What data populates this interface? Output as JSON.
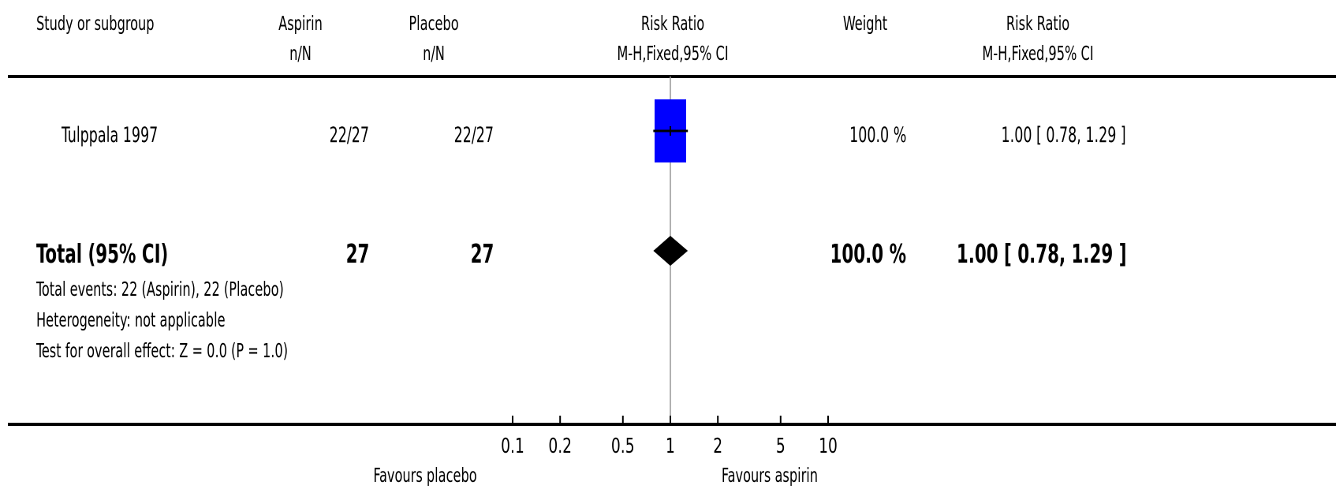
{
  "header": {
    "study": "Study or subgroup",
    "group1_name": "Aspirin",
    "group1_sub": "n/N",
    "group2_name": "Placebo",
    "group2_sub": "n/N",
    "plot_title": "Risk Ratio",
    "plot_sub": "M-H,Fixed,95% CI",
    "weight": "Weight",
    "result_title": "Risk Ratio",
    "result_sub": "M-H,Fixed,95% CI"
  },
  "studies": [
    {
      "name": "Tulppala 1997",
      "g1": "22/27",
      "g2": "22/27",
      "weight": "100.0 %",
      "ci_text": "1.00 [ 0.78, 1.29 ]"
    }
  ],
  "total": {
    "label": "Total (95% CI)",
    "g1": "27",
    "g2": "27",
    "weight": "100.0 %",
    "ci_text": "1.00 [ 0.78, 1.29 ]",
    "notes": [
      "Total events: 22 (Aspirin), 22 (Placebo)",
      "Heterogeneity: not applicable",
      "Test for overall effect: Z = 0.0 (P = 1.0)"
    ]
  },
  "axis": {
    "left_label": "Favours placebo",
    "right_label": "Favours aspirin"
  },
  "chart_data": {
    "type": "forest",
    "scale": "log",
    "xlim": [
      0.1,
      10
    ],
    "ticks": [
      0.1,
      0.2,
      0.5,
      1,
      2,
      5,
      10
    ],
    "tick_labels": [
      "0.1",
      "0.2",
      "0.5",
      "1",
      "2",
      "5",
      "10"
    ],
    "null_line": 1,
    "studies": [
      {
        "name": "Tulppala 1997",
        "rr": 1.0,
        "lower": 0.78,
        "upper": 1.29,
        "weight_pct": 100.0
      }
    ],
    "pooled": {
      "rr": 1.0,
      "lower": 0.78,
      "upper": 1.29
    },
    "colors": {
      "study_box": "#0000ff",
      "diamond": "#000000",
      "null_line": "#999999"
    }
  }
}
